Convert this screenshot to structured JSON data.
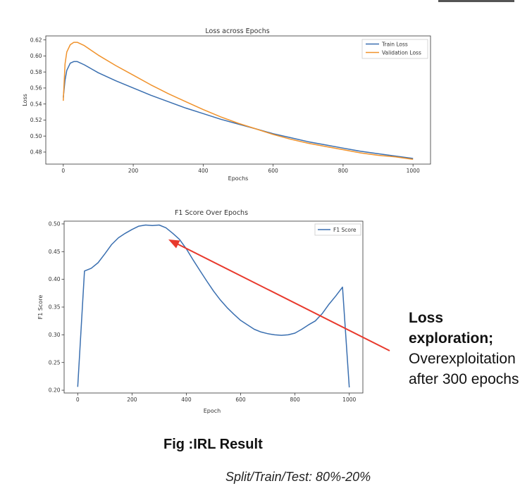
{
  "chart_data": [
    {
      "type": "line",
      "title": "Loss across Epochs",
      "xlabel": "Epochs",
      "ylabel": "Loss",
      "xlim": [
        -50,
        1050
      ],
      "ylim": [
        0.465,
        0.625
      ],
      "xticks": [
        0,
        200,
        400,
        600,
        800,
        1000
      ],
      "yticks": [
        0.48,
        0.5,
        0.52,
        0.54,
        0.56,
        0.58,
        0.6,
        0.62
      ],
      "ytick_labels": [
        "0.48",
        "0.50",
        "0.52",
        "0.54",
        "0.56",
        "0.58",
        "0.60",
        "0.62"
      ],
      "legend_position": "top-right",
      "series": [
        {
          "name": "Train Loss",
          "color": "#3a6fb0",
          "x": [
            0,
            5,
            10,
            20,
            30,
            40,
            60,
            80,
            100,
            150,
            200,
            250,
            300,
            350,
            400,
            450,
            500,
            550,
            600,
            650,
            700,
            750,
            800,
            850,
            900,
            950,
            1000
          ],
          "y": [
            0.548,
            0.57,
            0.582,
            0.591,
            0.593,
            0.593,
            0.589,
            0.584,
            0.579,
            0.569,
            0.56,
            0.551,
            0.543,
            0.535,
            0.528,
            0.521,
            0.515,
            0.509,
            0.503,
            0.498,
            0.493,
            0.489,
            0.485,
            0.481,
            0.478,
            0.475,
            0.472
          ]
        },
        {
          "name": "Validation Loss",
          "color": "#f0922b",
          "x": [
            0,
            5,
            10,
            20,
            30,
            40,
            60,
            80,
            100,
            150,
            200,
            250,
            300,
            350,
            400,
            450,
            500,
            550,
            600,
            650,
            700,
            750,
            800,
            850,
            900,
            950,
            1000
          ],
          "y": [
            0.544,
            0.59,
            0.605,
            0.614,
            0.617,
            0.617,
            0.613,
            0.607,
            0.601,
            0.588,
            0.576,
            0.564,
            0.553,
            0.543,
            0.533,
            0.524,
            0.516,
            0.509,
            0.502,
            0.496,
            0.491,
            0.487,
            0.483,
            0.479,
            0.476,
            0.474,
            0.471
          ]
        }
      ]
    },
    {
      "type": "line",
      "title": "F1 Score Over Epochs",
      "xlabel": "Epoch",
      "ylabel": "F1 Score",
      "xlim": [
        -50,
        1050
      ],
      "ylim": [
        0.195,
        0.505
      ],
      "xticks": [
        0,
        200,
        400,
        600,
        800,
        1000
      ],
      "yticks": [
        0.2,
        0.25,
        0.3,
        0.35,
        0.4,
        0.45,
        0.5
      ],
      "ytick_labels": [
        "0.20",
        "0.25",
        "0.30",
        "0.35",
        "0.40",
        "0.45",
        "0.50"
      ],
      "legend_position": "top-right",
      "series": [
        {
          "name": "F1 Score",
          "color": "#3a6fb0",
          "x": [
            0,
            25,
            50,
            75,
            100,
            125,
            150,
            175,
            200,
            225,
            250,
            275,
            300,
            325,
            350,
            375,
            400,
            425,
            450,
            475,
            500,
            525,
            550,
            575,
            600,
            625,
            650,
            675,
            700,
            725,
            750,
            775,
            800,
            825,
            850,
            875,
            900,
            925,
            950,
            975,
            1000
          ],
          "y": [
            0.206,
            0.415,
            0.42,
            0.43,
            0.446,
            0.463,
            0.475,
            0.483,
            0.49,
            0.496,
            0.498,
            0.497,
            0.498,
            0.493,
            0.483,
            0.472,
            0.455,
            0.435,
            0.416,
            0.397,
            0.379,
            0.363,
            0.349,
            0.337,
            0.326,
            0.318,
            0.31,
            0.305,
            0.302,
            0.3,
            0.299,
            0.3,
            0.303,
            0.31,
            0.318,
            0.325,
            0.338,
            0.355,
            0.37,
            0.386,
            0.205
          ]
        }
      ]
    }
  ],
  "annotation": {
    "bold_text": "Loss exploration;",
    "text": "Overexploitation after 300 epochs"
  },
  "caption": "Fig :IRL Result",
  "split_note": "Split/Train/Test: 80%-20%"
}
